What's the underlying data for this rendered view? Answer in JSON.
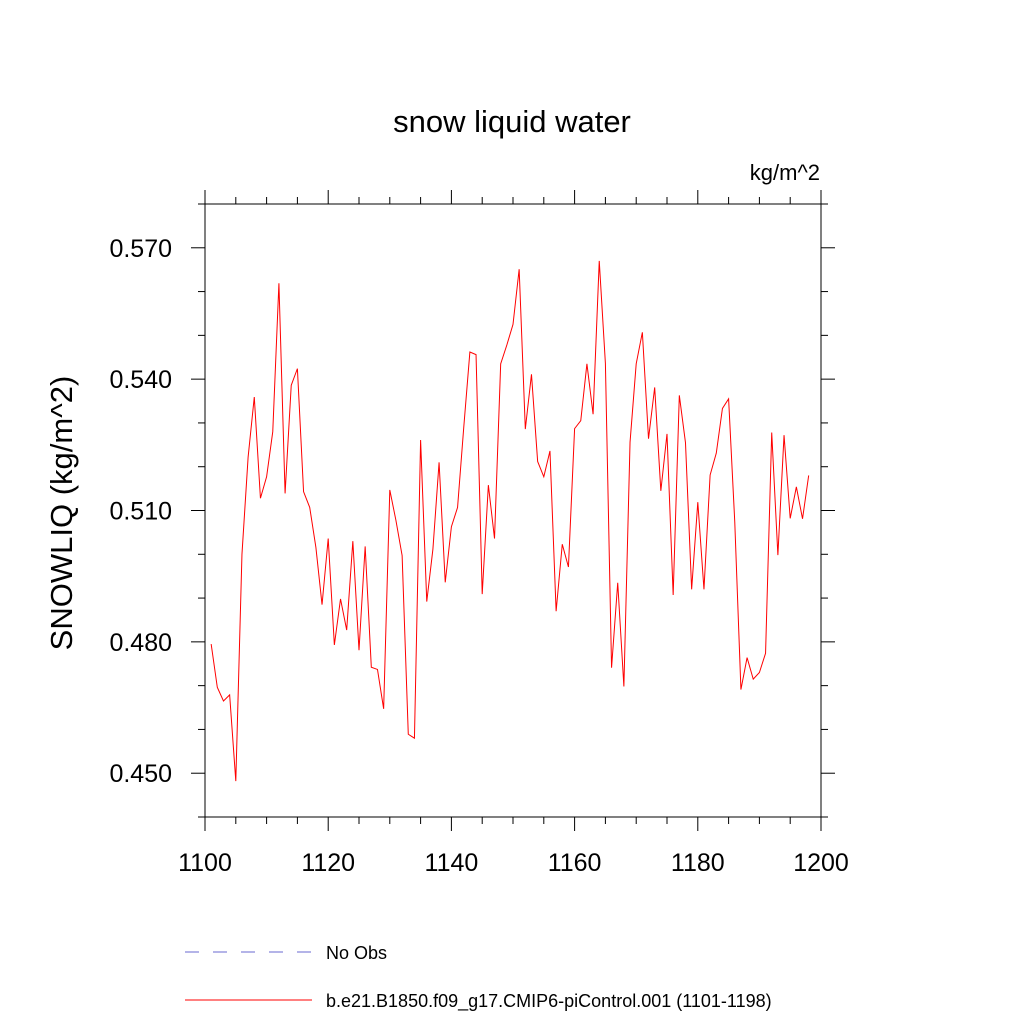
{
  "chart_data": {
    "type": "line",
    "title": "snow liquid water",
    "units": "kg/m^2",
    "xlabel": "",
    "ylabel": "SNOWLIQ  (kg/m^2)",
    "xlim": [
      1100,
      1200
    ],
    "ylim": [
      0.44,
      0.58
    ],
    "x_ticks": [
      "1100",
      "1120",
      "1140",
      "1160",
      "1180",
      "1200"
    ],
    "y_ticks": [
      "0.450",
      "0.480",
      "0.510",
      "0.540",
      "0.570"
    ],
    "series": [
      {
        "name": "b.e21.B1850.f09_g17.CMIP6-piControl.001 (1101-1198)",
        "color": "#ff0000",
        "style": "solid",
        "x_start": 1101,
        "values": [
          0.4795,
          0.4696,
          0.4665,
          0.4679,
          0.4482,
          0.5,
          0.5222,
          0.5359,
          0.5128,
          0.5177,
          0.528,
          0.5619,
          0.5139,
          0.5386,
          0.5424,
          0.5143,
          0.5107,
          0.5016,
          0.4885,
          0.5036,
          0.4793,
          0.4898,
          0.4827,
          0.503,
          0.4781,
          0.5018,
          0.4742,
          0.4737,
          0.4647,
          0.5147,
          0.5077,
          0.4997,
          0.4589,
          0.458,
          0.5261,
          0.4892,
          0.5012,
          0.521,
          0.4936,
          0.5063,
          0.5107,
          0.5289,
          0.5462,
          0.5456,
          0.4909,
          0.5158,
          0.5036,
          0.5435,
          0.5478,
          0.5525,
          0.5651,
          0.5286,
          0.5411,
          0.5212,
          0.5177,
          0.5236,
          0.487,
          0.5023,
          0.4971,
          0.5287,
          0.5305,
          0.5435,
          0.532,
          0.567,
          0.5436,
          0.4741,
          0.4935,
          0.4698,
          0.5256,
          0.5435,
          0.5507,
          0.5264,
          0.5381,
          0.5145,
          0.5275,
          0.4907,
          0.5363,
          0.5255,
          0.492,
          0.5119,
          0.492,
          0.5181,
          0.5231,
          0.5333,
          0.5355,
          0.5074,
          0.4691,
          0.4764,
          0.4715,
          0.473,
          0.4774,
          0.5278,
          0.4998,
          0.5272,
          0.5082,
          0.5154,
          0.5081,
          0.518
        ]
      },
      {
        "name": "No Obs",
        "color": "#6a6ad0",
        "style": "dashed",
        "values": []
      }
    ]
  }
}
